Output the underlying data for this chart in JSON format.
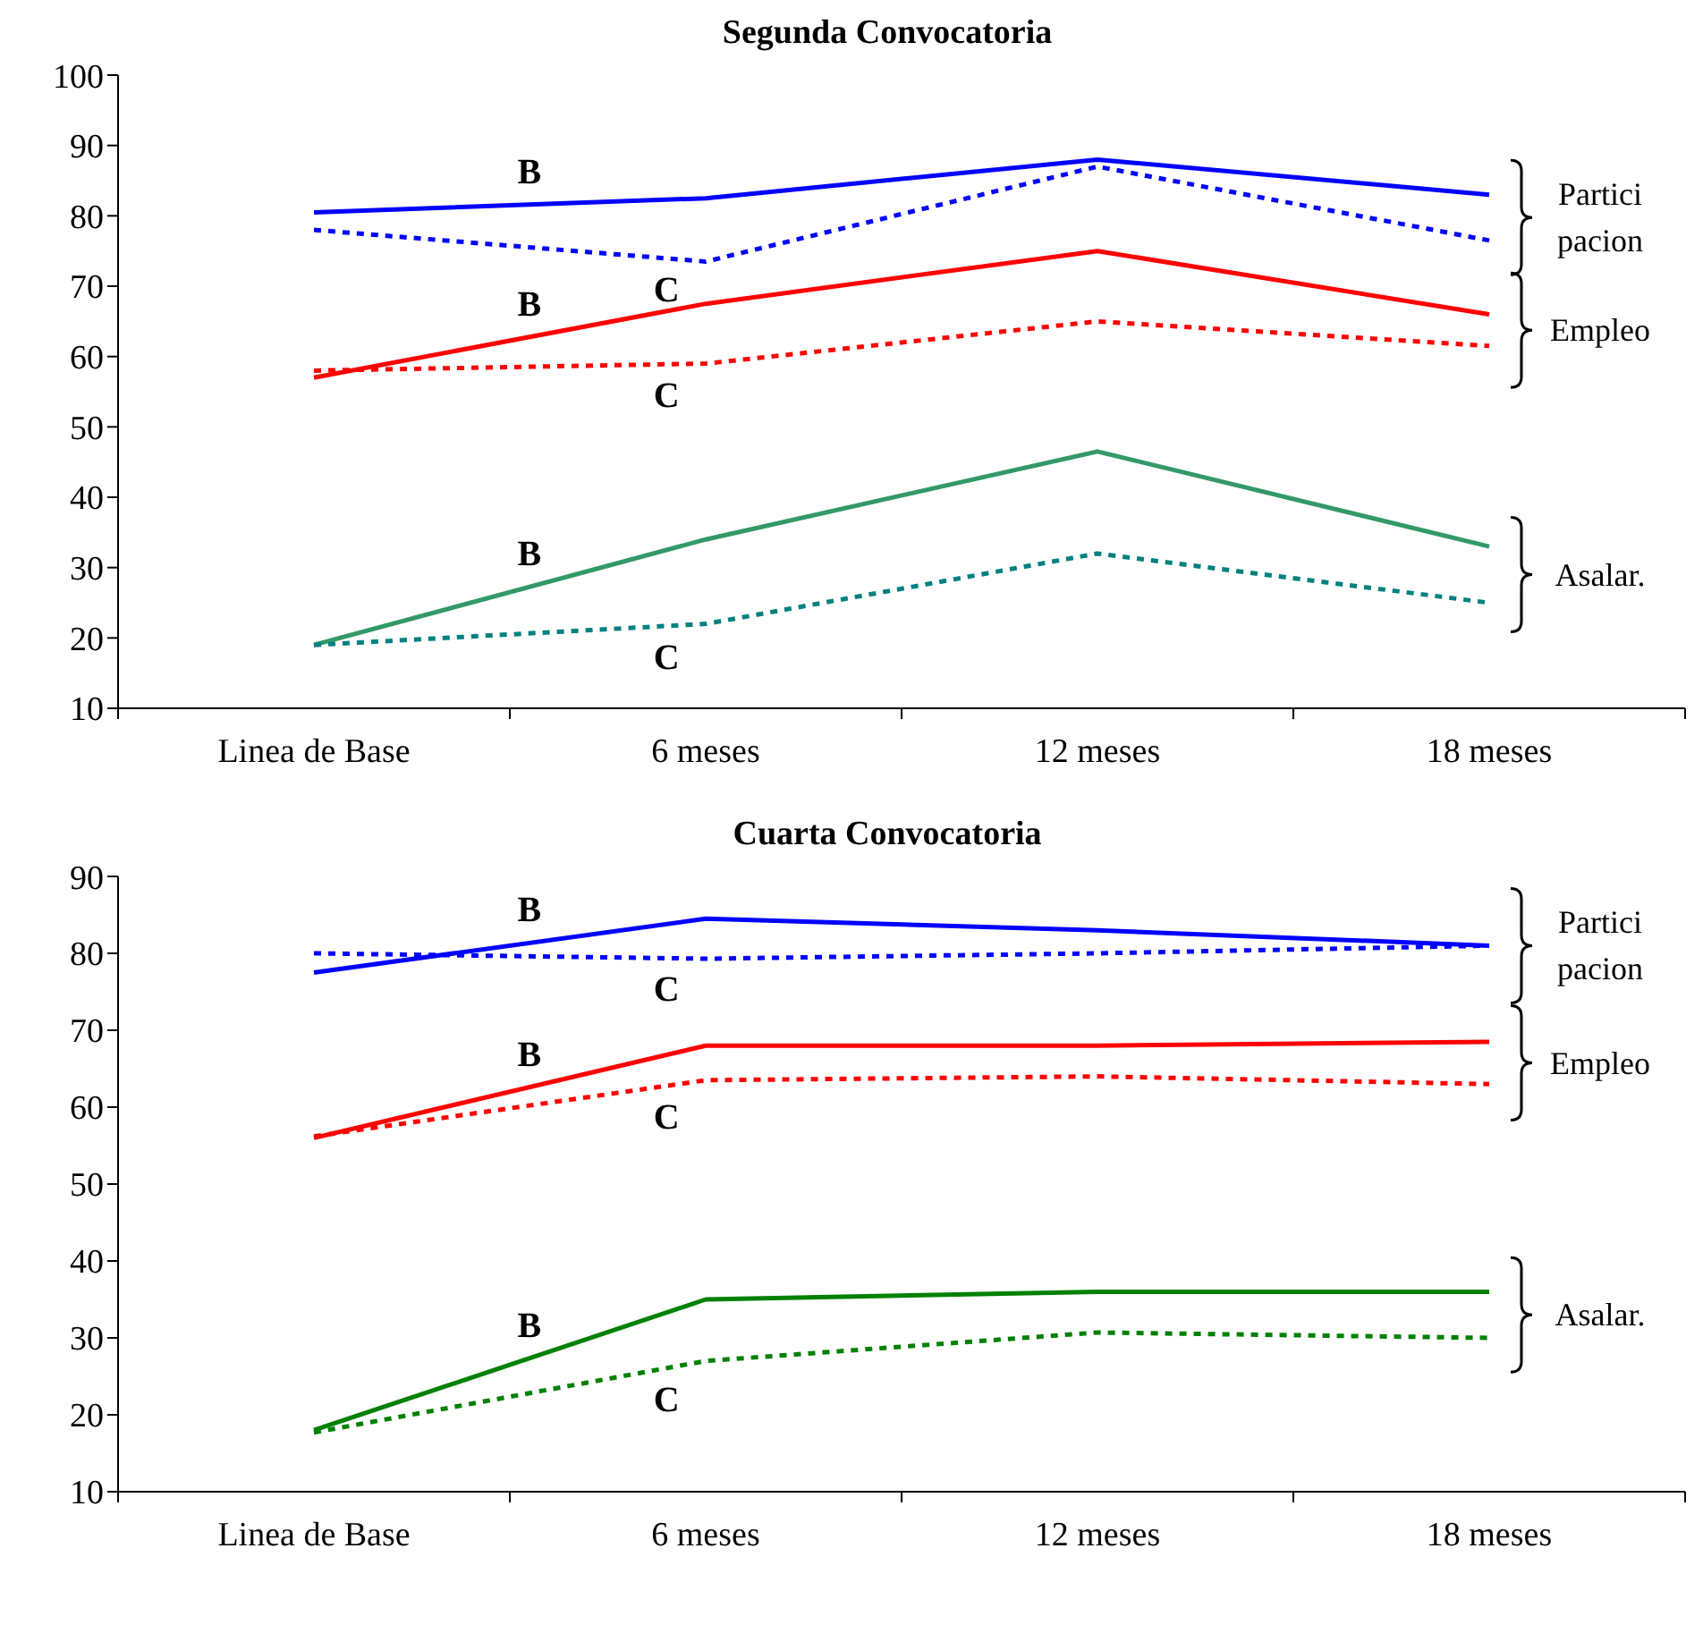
{
  "chart_data": [
    {
      "type": "line",
      "title": "Segunda Convocatoria",
      "categories": [
        "Linea de Base",
        "6 meses",
        "12 meses",
        "18 meses"
      ],
      "ylim": [
        10,
        100
      ],
      "yticks": [
        10,
        20,
        30,
        40,
        50,
        60,
        70,
        80,
        90,
        100
      ],
      "grid": false,
      "legend": false,
      "marker": "none",
      "series": [
        {
          "name": "B",
          "color": "#0000ff",
          "line_style": "solid",
          "values": [
            80.5,
            82.5,
            88,
            83
          ]
        },
        {
          "name": "C",
          "color": "#0000ff",
          "line_style": "dotted",
          "values": [
            78,
            73.5,
            87,
            76.5
          ]
        },
        {
          "name": "B",
          "color": "#ff0000",
          "line_style": "solid",
          "values": [
            57,
            67.5,
            75,
            66
          ]
        },
        {
          "name": "C",
          "color": "#ff0000",
          "line_style": "dotted",
          "values": [
            58,
            59,
            65,
            61.5
          ]
        },
        {
          "name": "B",
          "color": "#339966",
          "line_style": "solid",
          "values": [
            19,
            34,
            46.5,
            33
          ]
        },
        {
          "name": "C",
          "color": "#008080",
          "line_style": "dotted",
          "values": [
            19,
            22,
            32,
            25
          ]
        }
      ],
      "annotations": [
        "Partici\npacion",
        "Empleo",
        "Asalar."
      ]
    },
    {
      "type": "line",
      "title": "Cuarta Convocatoria",
      "categories": [
        "Linea de Base",
        "6 meses",
        "12 meses",
        "18 meses"
      ],
      "ylim": [
        10,
        90
      ],
      "yticks": [
        10,
        20,
        30,
        40,
        50,
        60,
        70,
        80,
        90
      ],
      "grid": false,
      "legend": false,
      "marker": "none",
      "series": [
        {
          "name": "B",
          "color": "#0000ff",
          "line_style": "solid",
          "values": [
            77.5,
            84.5,
            83,
            81
          ]
        },
        {
          "name": "C",
          "color": "#0000ff",
          "line_style": "dotted",
          "values": [
            80,
            79.3,
            80,
            81
          ]
        },
        {
          "name": "B",
          "color": "#ff0000",
          "line_style": "solid",
          "values": [
            56,
            68,
            68,
            68.5
          ]
        },
        {
          "name": "C",
          "color": "#ff0000",
          "line_style": "dotted",
          "values": [
            56.2,
            63.5,
            64,
            63
          ]
        },
        {
          "name": "B",
          "color": "#008000",
          "line_style": "solid",
          "values": [
            18,
            35,
            36,
            36
          ]
        },
        {
          "name": "C",
          "color": "#008000",
          "line_style": "dotted",
          "values": [
            17.7,
            27,
            30.7,
            30
          ]
        }
      ],
      "annotations": [
        "Partici\npacion",
        "Empleo",
        "Asalar."
      ]
    }
  ]
}
